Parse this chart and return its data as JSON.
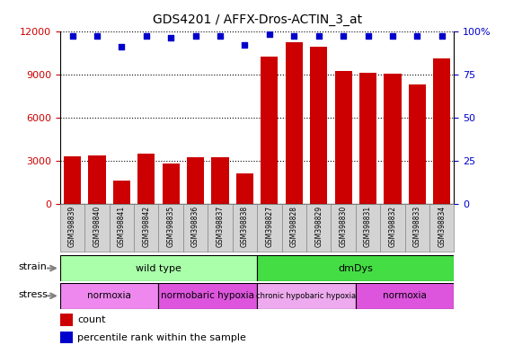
{
  "title": "GDS4201 / AFFX-Dros-ACTIN_3_at",
  "samples": [
    "GSM398839",
    "GSM398840",
    "GSM398841",
    "GSM398842",
    "GSM398835",
    "GSM398836",
    "GSM398837",
    "GSM398838",
    "GSM398827",
    "GSM398828",
    "GSM398829",
    "GSM398830",
    "GSM398831",
    "GSM398832",
    "GSM398833",
    "GSM398834"
  ],
  "counts": [
    3300,
    3350,
    1600,
    3450,
    2800,
    3250,
    3200,
    2100,
    10200,
    11200,
    10900,
    9200,
    9100,
    9050,
    8300,
    10100
  ],
  "percentile_ranks": [
    97,
    97,
    91,
    97,
    96,
    97,
    97,
    92,
    98,
    97,
    97,
    97,
    97,
    97,
    97,
    97
  ],
  "ylim_left": [
    0,
    12000
  ],
  "ylim_right": [
    0,
    100
  ],
  "yticks_left": [
    0,
    3000,
    6000,
    9000,
    12000
  ],
  "yticks_right": [
    0,
    25,
    50,
    75,
    100
  ],
  "bar_color": "#cc0000",
  "dot_color": "#0000cc",
  "strain_groups": [
    {
      "label": "wild type",
      "start": 0,
      "end": 8,
      "color": "#aaffaa"
    },
    {
      "label": "dmDys",
      "start": 8,
      "end": 16,
      "color": "#44dd44"
    }
  ],
  "stress_groups": [
    {
      "label": "normoxia",
      "start": 0,
      "end": 4,
      "color": "#ee88ee"
    },
    {
      "label": "normobaric hypoxia",
      "start": 4,
      "end": 8,
      "color": "#dd55dd"
    },
    {
      "label": "chronic hypobaric hypoxia",
      "start": 8,
      "end": 12,
      "color": "#eeaaee"
    },
    {
      "label": "normoxia",
      "start": 12,
      "end": 16,
      "color": "#dd55dd"
    }
  ],
  "background_color": "#ffffff"
}
